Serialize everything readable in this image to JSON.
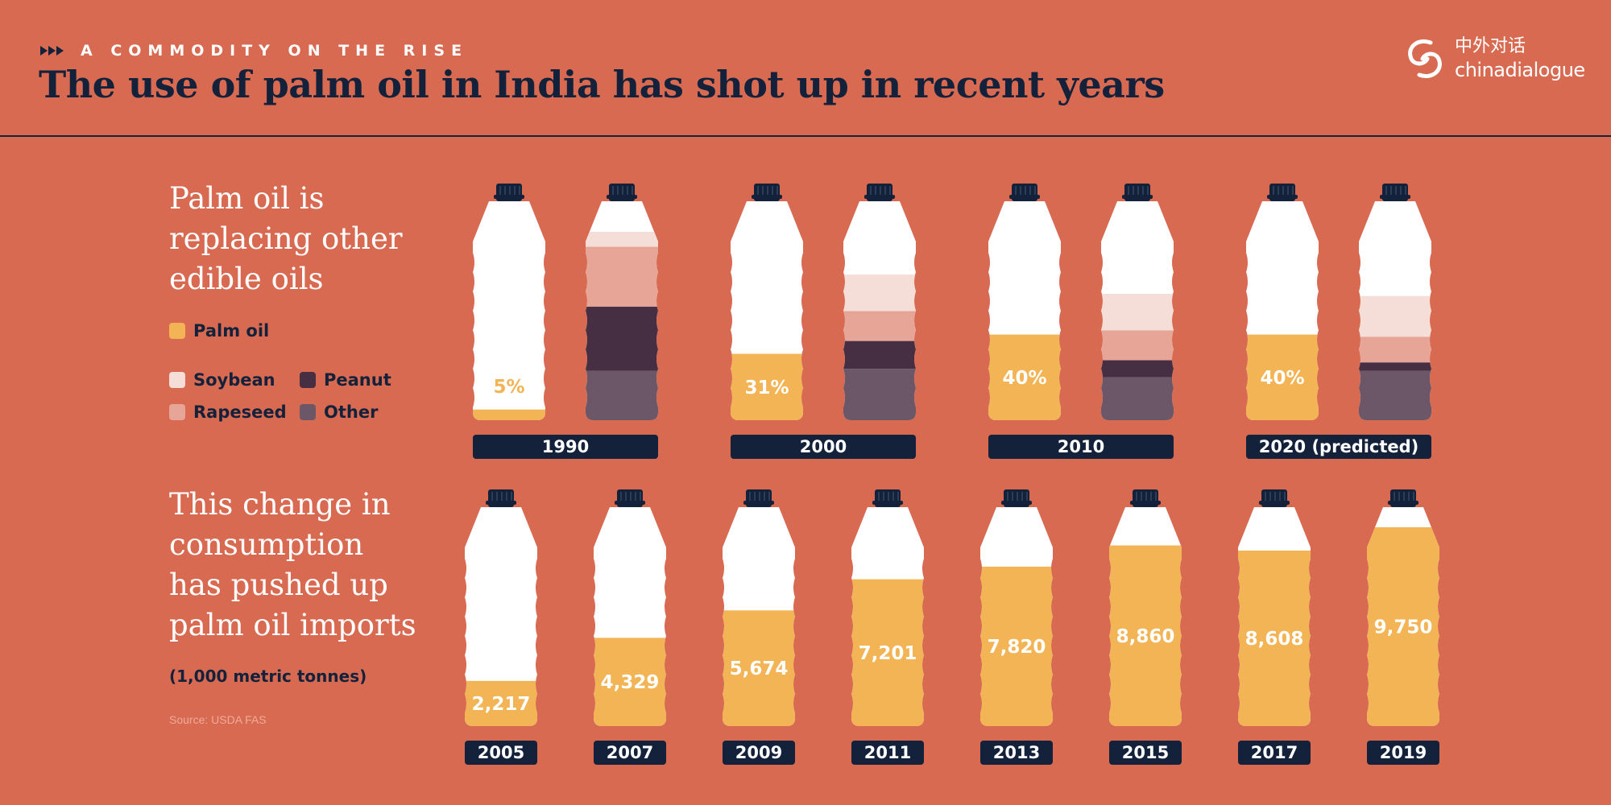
{
  "header": {
    "kicker": "A COMMODITY ON THE RISE",
    "title": "The use of palm oil in India has shot up in recent years",
    "logo_cn": "中外对话",
    "logo_en": "chinadialogue"
  },
  "section1": {
    "title_lines": [
      "Palm oil is",
      "replacing other",
      "edible oils"
    ],
    "legend": {
      "palm": "Palm oil",
      "soybean": "Soybean",
      "peanut": "Peanut",
      "rapeseed": "Rapeseed",
      "other": "Other"
    }
  },
  "section2": {
    "title_lines": [
      "This change in",
      "consumption",
      "has pushed up",
      "palm oil imports"
    ],
    "unit": "(1,000 metric tonnes)",
    "source": "Source: USDA FAS"
  },
  "colors": {
    "background": "#d86a52",
    "navy": "#13223a",
    "palm": "#f2b455",
    "soybean": "#f5ddd8",
    "rapeseed": "#e6a596",
    "peanut": "#462e43",
    "other": "#6c5768",
    "white": "#ffffff"
  },
  "chart_data": [
    {
      "type": "bar",
      "title": "",
      "categories": [
        "1990",
        "2000",
        "2010",
        "2020 (predicted)"
      ],
      "series": [
        {
          "name": "Palm oil",
          "values": [
            5,
            31,
            40,
            40
          ],
          "labels": [
            "5%",
            "31%",
            "40%",
            "40%"
          ]
        },
        {
          "name": "Soybean",
          "values": [
            7,
            17,
            17,
            19
          ]
        },
        {
          "name": "Rapeseed",
          "values": [
            28,
            14,
            14,
            12
          ]
        },
        {
          "name": "Peanut",
          "values": [
            30,
            13,
            8,
            4
          ]
        },
        {
          "name": "Other",
          "values": [
            23,
            24,
            20,
            23
          ]
        }
      ],
      "ylim": [
        0,
        100
      ],
      "note": "Share of edible oil use, shown as filled bottles"
    },
    {
      "type": "bar",
      "title": "",
      "categories": [
        "2005",
        "2007",
        "2009",
        "2011",
        "2013",
        "2015",
        "2017",
        "2019"
      ],
      "values": [
        2217,
        4329,
        5674,
        7201,
        7820,
        8860,
        8608,
        9750
      ],
      "labels": [
        "2,217",
        "4,329",
        "5,674",
        "7,201",
        "7,820",
        "8,860",
        "8,608",
        "9,750"
      ],
      "ylabel": "(1,000 metric tonnes)",
      "ylim": [
        0,
        10500
      ]
    }
  ]
}
